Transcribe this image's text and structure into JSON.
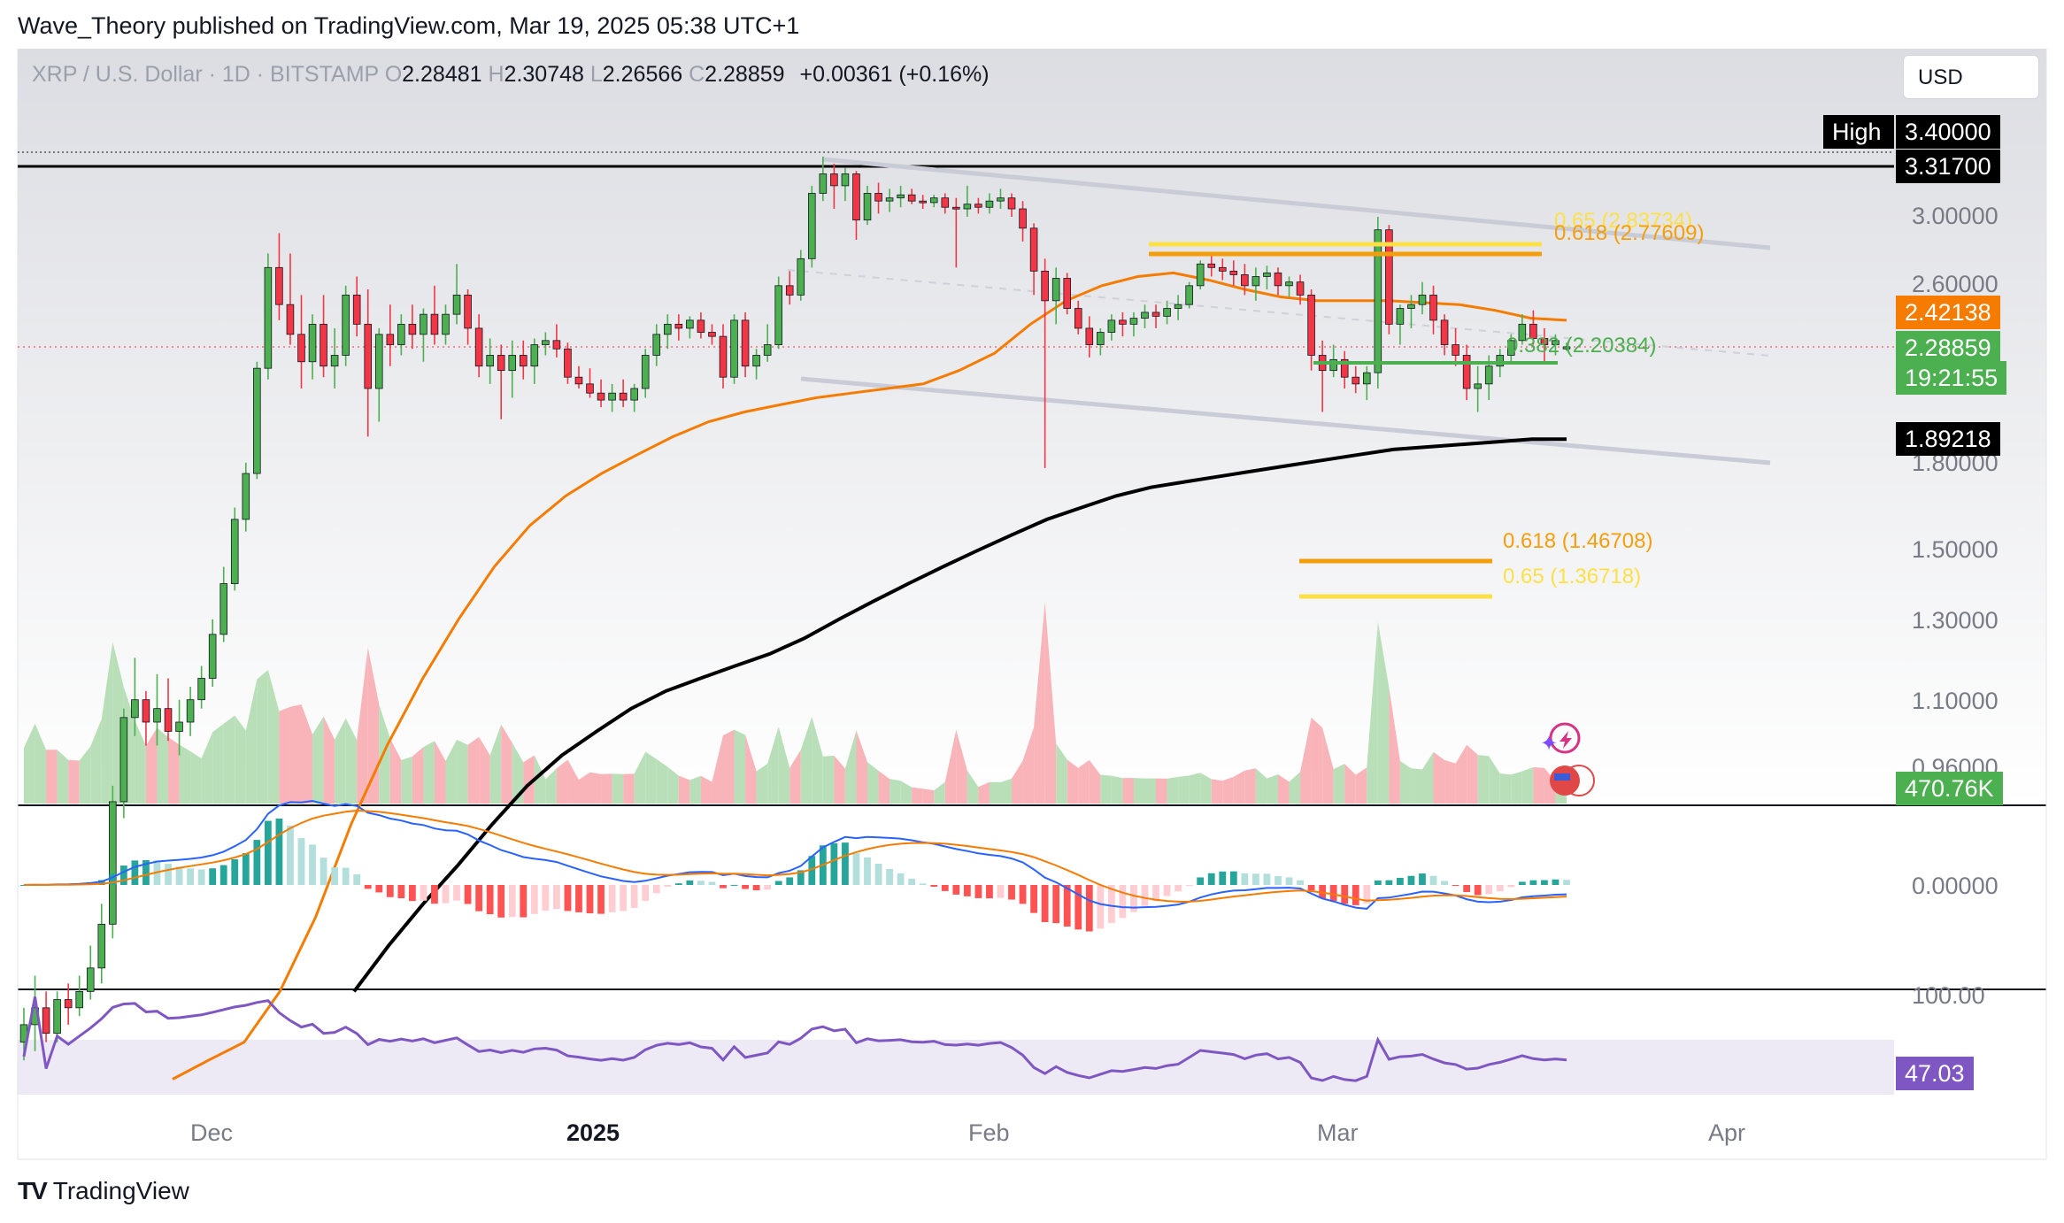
{
  "header": {
    "publisher": "Wave_Theory published on TradingView.com, Mar 19, 2025 05:38 UTC+1"
  },
  "legend": {
    "symbol": "XRP / U.S. Dollar · 1D · BITSTAMP",
    "o_label": "O",
    "o": "2.28481",
    "h_label": "H",
    "h": "2.30748",
    "l_label": "L",
    "l": "2.26566",
    "c_label": "C",
    "c": "2.28859",
    "change": "+0.00361 (+0.16%)"
  },
  "currency_button": "USD",
  "price_tags": {
    "high_label": "High",
    "high": "3.40000",
    "prev_high": "3.31700",
    "ema50": "2.42138",
    "last": "2.28859",
    "countdown": "19:21:55",
    "ema200": "1.89218",
    "volume": "470.76K",
    "rsi": "47.03"
  },
  "fib_labels": {
    "upper_065": "0.65 (2.83734)",
    "upper_0618": "0.618 (2.77609)",
    "support": "0.382 (2.20384)",
    "lower_0618": "0.618 (1.46708)",
    "lower_065": "0.65 (1.36718)"
  },
  "footer": {
    "brand": "TradingView",
    "logo": "TV"
  },
  "colors": {
    "up": "#4caf50",
    "down": "#f23645",
    "ema50": "#f57c00",
    "ema200": "#000000",
    "fib618": "#f59e0b",
    "fib65": "#fde047",
    "support": "#4caf50",
    "macd": "#2962ff",
    "signal": "#f57c00",
    "rsi": "#7e57c2",
    "channel": "#c9cbd6"
  },
  "chart_data": {
    "type": "candlestick",
    "title": "",
    "price_axis": {
      "scale": "log",
      "ticks": [
        "3.00000",
        "2.60000",
        "1.80000",
        "1.50000",
        "1.30000",
        "1.10000",
        "0.96000"
      ]
    },
    "time_axis": {
      "ticks": [
        "Dec",
        "2025",
        "Feb",
        "Mar",
        "Apr"
      ]
    },
    "macd_axis": {
      "ticks": [
        "0.00000"
      ]
    },
    "rsi_axis": {
      "ticks": [
        "100.00"
      ]
    },
    "candles": [
      [
        0.54,
        0.58,
        0.52,
        0.56
      ],
      [
        0.56,
        0.62,
        0.53,
        0.58
      ],
      [
        0.58,
        0.6,
        0.54,
        0.55
      ],
      [
        0.55,
        0.6,
        0.54,
        0.59
      ],
      [
        0.59,
        0.61,
        0.56,
        0.58
      ],
      [
        0.58,
        0.62,
        0.57,
        0.6
      ],
      [
        0.6,
        0.66,
        0.59,
        0.63
      ],
      [
        0.63,
        0.72,
        0.61,
        0.69
      ],
      [
        0.69,
        0.92,
        0.67,
        0.89
      ],
      [
        0.89,
        1.08,
        0.86,
        1.06
      ],
      [
        1.06,
        1.2,
        1.02,
        1.1
      ],
      [
        1.1,
        1.12,
        1.0,
        1.05
      ],
      [
        1.05,
        1.16,
        1.0,
        1.08
      ],
      [
        1.08,
        1.15,
        1.01,
        1.03
      ],
      [
        1.03,
        1.1,
        0.98,
        1.05
      ],
      [
        1.05,
        1.13,
        1.02,
        1.1
      ],
      [
        1.1,
        1.18,
        1.08,
        1.15
      ],
      [
        1.15,
        1.3,
        1.13,
        1.26
      ],
      [
        1.26,
        1.45,
        1.24,
        1.4
      ],
      [
        1.4,
        1.64,
        1.38,
        1.6
      ],
      [
        1.6,
        1.8,
        1.56,
        1.76
      ],
      [
        1.76,
        2.22,
        1.74,
        2.19
      ],
      [
        2.19,
        2.78,
        2.14,
        2.7
      ],
      [
        2.7,
        2.9,
        2.42,
        2.5
      ],
      [
        2.5,
        2.78,
        2.3,
        2.35
      ],
      [
        2.35,
        2.55,
        2.1,
        2.22
      ],
      [
        2.22,
        2.45,
        2.14,
        2.4
      ],
      [
        2.4,
        2.55,
        2.15,
        2.2
      ],
      [
        2.2,
        2.38,
        2.1,
        2.25
      ],
      [
        2.25,
        2.6,
        2.2,
        2.55
      ],
      [
        2.55,
        2.65,
        2.34,
        2.4
      ],
      [
        2.4,
        2.58,
        1.9,
        2.1
      ],
      [
        2.1,
        2.38,
        1.96,
        2.35
      ],
      [
        2.35,
        2.5,
        2.2,
        2.3
      ],
      [
        2.3,
        2.45,
        2.25,
        2.4
      ],
      [
        2.4,
        2.5,
        2.28,
        2.35
      ],
      [
        2.35,
        2.48,
        2.22,
        2.45
      ],
      [
        2.45,
        2.6,
        2.3,
        2.35
      ],
      [
        2.35,
        2.5,
        2.3,
        2.45
      ],
      [
        2.45,
        2.72,
        2.4,
        2.55
      ],
      [
        2.55,
        2.58,
        2.3,
        2.38
      ],
      [
        2.38,
        2.45,
        2.15,
        2.2
      ],
      [
        2.2,
        2.33,
        2.12,
        2.25
      ],
      [
        2.25,
        2.3,
        1.97,
        2.18
      ],
      [
        2.18,
        2.32,
        2.06,
        2.25
      ],
      [
        2.25,
        2.32,
        2.14,
        2.2
      ],
      [
        2.2,
        2.33,
        2.12,
        2.3
      ],
      [
        2.3,
        2.36,
        2.25,
        2.32
      ],
      [
        2.32,
        2.4,
        2.24,
        2.28
      ],
      [
        2.28,
        2.31,
        2.12,
        2.15
      ],
      [
        2.15,
        2.2,
        2.1,
        2.12
      ],
      [
        2.12,
        2.19,
        2.06,
        2.08
      ],
      [
        2.08,
        2.14,
        2.02,
        2.05
      ],
      [
        2.05,
        2.12,
        2.0,
        2.08
      ],
      [
        2.08,
        2.14,
        2.02,
        2.05
      ],
      [
        2.05,
        2.12,
        2.0,
        2.1
      ],
      [
        2.1,
        2.28,
        2.06,
        2.25
      ],
      [
        2.25,
        2.4,
        2.2,
        2.35
      ],
      [
        2.35,
        2.45,
        2.28,
        2.4
      ],
      [
        2.4,
        2.45,
        2.32,
        2.38
      ],
      [
        2.38,
        2.44,
        2.33,
        2.42
      ],
      [
        2.42,
        2.46,
        2.33,
        2.36
      ],
      [
        2.36,
        2.4,
        2.3,
        2.34
      ],
      [
        2.34,
        2.4,
        2.1,
        2.15
      ],
      [
        2.15,
        2.45,
        2.12,
        2.42
      ],
      [
        2.42,
        2.46,
        2.15,
        2.2
      ],
      [
        2.2,
        2.28,
        2.14,
        2.25
      ],
      [
        2.25,
        2.4,
        2.22,
        2.3
      ],
      [
        2.3,
        2.65,
        2.28,
        2.6
      ],
      [
        2.6,
        2.68,
        2.5,
        2.55
      ],
      [
        2.55,
        2.8,
        2.52,
        2.75
      ],
      [
        2.75,
        3.2,
        2.7,
        3.15
      ],
      [
        3.15,
        3.4,
        3.1,
        3.28
      ],
      [
        3.28,
        3.35,
        3.05,
        3.2
      ],
      [
        3.2,
        3.32,
        3.1,
        3.28
      ],
      [
        3.28,
        3.3,
        2.86,
        2.98
      ],
      [
        2.98,
        3.2,
        2.95,
        3.15
      ],
      [
        3.15,
        3.22,
        3.02,
        3.1
      ],
      [
        3.1,
        3.18,
        3.03,
        3.12
      ],
      [
        3.12,
        3.2,
        3.06,
        3.14
      ],
      [
        3.14,
        3.18,
        3.08,
        3.1
      ],
      [
        3.1,
        3.14,
        3.05,
        3.09
      ],
      [
        3.09,
        3.14,
        3.06,
        3.12
      ],
      [
        3.12,
        3.15,
        3.02,
        3.06
      ],
      [
        3.06,
        3.12,
        2.7,
        3.05
      ],
      [
        3.05,
        3.2,
        3.0,
        3.08
      ],
      [
        3.08,
        3.12,
        3.02,
        3.06
      ],
      [
        3.06,
        3.15,
        3.02,
        3.1
      ],
      [
        3.1,
        3.18,
        3.05,
        3.12
      ],
      [
        3.12,
        3.15,
        3.0,
        3.05
      ],
      [
        3.05,
        3.1,
        2.85,
        2.93
      ],
      [
        2.93,
        2.96,
        2.55,
        2.68
      ],
      [
        2.68,
        2.75,
        1.78,
        2.52
      ],
      [
        2.52,
        2.7,
        2.4,
        2.64
      ],
      [
        2.64,
        2.67,
        2.45,
        2.48
      ],
      [
        2.48,
        2.52,
        2.35,
        2.38
      ],
      [
        2.38,
        2.44,
        2.24,
        2.3
      ],
      [
        2.3,
        2.38,
        2.25,
        2.36
      ],
      [
        2.36,
        2.45,
        2.32,
        2.42
      ],
      [
        2.42,
        2.46,
        2.34,
        2.4
      ],
      [
        2.4,
        2.46,
        2.34,
        2.43
      ],
      [
        2.43,
        2.5,
        2.38,
        2.46
      ],
      [
        2.46,
        2.5,
        2.38,
        2.44
      ],
      [
        2.44,
        2.52,
        2.4,
        2.48
      ],
      [
        2.48,
        2.55,
        2.42,
        2.5
      ],
      [
        2.5,
        2.62,
        2.48,
        2.6
      ],
      [
        2.6,
        2.74,
        2.58,
        2.72
      ],
      [
        2.72,
        2.78,
        2.65,
        2.7
      ],
      [
        2.7,
        2.75,
        2.63,
        2.68
      ],
      [
        2.68,
        2.74,
        2.6,
        2.66
      ],
      [
        2.66,
        2.72,
        2.55,
        2.6
      ],
      [
        2.6,
        2.7,
        2.52,
        2.65
      ],
      [
        2.65,
        2.71,
        2.58,
        2.67
      ],
      [
        2.67,
        2.7,
        2.55,
        2.6
      ],
      [
        2.6,
        2.65,
        2.54,
        2.62
      ],
      [
        2.62,
        2.66,
        2.5,
        2.55
      ],
      [
        2.55,
        2.58,
        2.18,
        2.25
      ],
      [
        2.25,
        2.32,
        2.0,
        2.18
      ],
      [
        2.18,
        2.3,
        2.15,
        2.23
      ],
      [
        2.23,
        2.27,
        2.1,
        2.15
      ],
      [
        2.15,
        2.2,
        2.08,
        2.12
      ],
      [
        2.12,
        2.2,
        2.05,
        2.17
      ],
      [
        2.17,
        3.0,
        2.1,
        2.92
      ],
      [
        2.92,
        2.95,
        2.35,
        2.4
      ],
      [
        2.4,
        2.5,
        2.3,
        2.48
      ],
      [
        2.48,
        2.55,
        2.38,
        2.5
      ],
      [
        2.5,
        2.62,
        2.45,
        2.55
      ],
      [
        2.55,
        2.6,
        2.35,
        2.42
      ],
      [
        2.42,
        2.45,
        2.25,
        2.3
      ],
      [
        2.3,
        2.38,
        2.2,
        2.25
      ],
      [
        2.25,
        2.3,
        2.05,
        2.1
      ],
      [
        2.1,
        2.2,
        2.0,
        2.12
      ],
      [
        2.12,
        2.25,
        2.05,
        2.2
      ],
      [
        2.2,
        2.28,
        2.15,
        2.25
      ],
      [
        2.25,
        2.35,
        2.22,
        2.32
      ],
      [
        2.32,
        2.45,
        2.3,
        2.4
      ],
      [
        2.4,
        2.47,
        2.3,
        2.33
      ],
      [
        2.33,
        2.38,
        2.22,
        2.3
      ],
      [
        2.3,
        2.35,
        2.25,
        2.32
      ],
      [
        2.28,
        2.31,
        2.27,
        2.29
      ]
    ],
    "ema50": [
      0.5,
      0.52,
      0.54,
      0.6,
      0.7,
      0.85,
      1.0,
      1.15,
      1.3,
      1.45,
      1.58,
      1.68,
      1.76,
      1.83,
      1.9,
      1.96,
      2.0,
      2.03,
      2.06,
      2.08,
      2.1,
      2.12,
      2.18,
      2.26,
      2.4,
      2.52,
      2.6,
      2.65,
      2.67,
      2.63,
      2.58,
      2.54,
      2.52,
      2.52,
      2.52,
      2.51,
      2.5,
      2.47,
      2.43,
      2.42
    ],
    "ema200": [
      0.6,
      0.66,
      0.72,
      0.78,
      0.85,
      0.92,
      0.98,
      1.03,
      1.08,
      1.12,
      1.15,
      1.18,
      1.21,
      1.25,
      1.3,
      1.35,
      1.4,
      1.45,
      1.5,
      1.55,
      1.6,
      1.64,
      1.68,
      1.71,
      1.73,
      1.75,
      1.77,
      1.79,
      1.81,
      1.83,
      1.85,
      1.86,
      1.87,
      1.88,
      1.89,
      1.89
    ],
    "rsi_latest": 47.03,
    "levels": {
      "high": 3.4,
      "prev_high": 3.317,
      "ema50": 2.42138,
      "last": 2.28859,
      "ema200": 1.89218,
      "support": 2.20384,
      "fib_0618": 1.46708,
      "fib_065": 1.36718,
      "fib_upper_0618": 2.77609,
      "fib_upper_065": 2.83734
    },
    "volume_latest": "470.76K"
  }
}
